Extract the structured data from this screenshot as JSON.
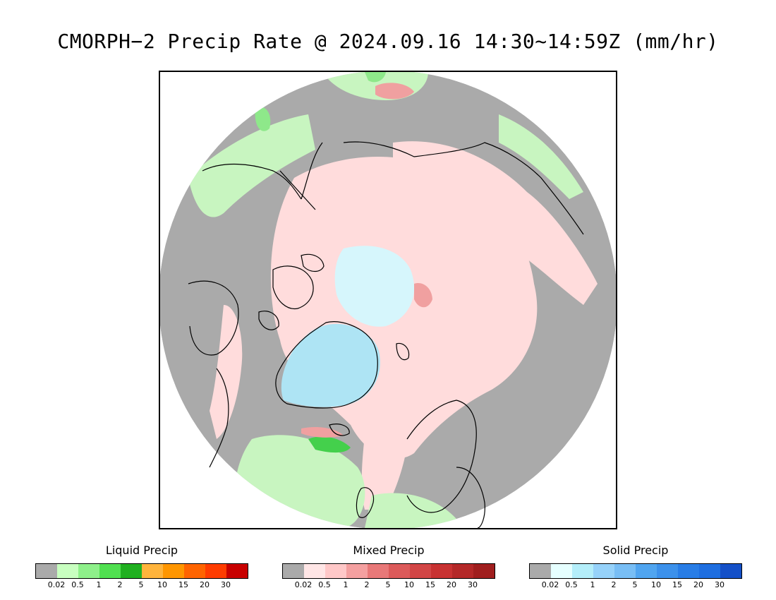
{
  "title": "CMORPH−2 Precip Rate @ 2024.09.16 14:30~14:59Z (mm/hr)",
  "map": {
    "projection": "north-polar-stereographic",
    "colors": {
      "no_precip": "#aaaaaa",
      "liquid_light": "#c8f5c0",
      "liquid_mid": "#8ee88a",
      "liquid_strong": "#44d04c",
      "mixed_light": "#ffdcdc",
      "mixed_mid": "#f0a0a0",
      "mixed_strong": "#dc5a5a",
      "solid_light": "#d6f6fc",
      "solid_mid": "#aee4f4",
      "coastline": "#000000"
    }
  },
  "legends": [
    {
      "title": "Liquid Precip",
      "ticks": [
        "0.02",
        "0.5",
        "1",
        "2",
        "5",
        "10",
        "15",
        "20",
        "30"
      ],
      "colors": [
        "#aaaaaa",
        "#c8ffc0",
        "#8ef08a",
        "#50e050",
        "#20b020",
        "#ffb43c",
        "#ff9600",
        "#ff6400",
        "#ff3c00",
        "#c80000"
      ]
    },
    {
      "title": "Mixed Precip",
      "ticks": [
        "0.02",
        "0.5",
        "1",
        "2",
        "5",
        "10",
        "15",
        "20",
        "30"
      ],
      "colors": [
        "#aaaaaa",
        "#ffe6e6",
        "#ffc8c8",
        "#f4a0a0",
        "#e87878",
        "#dc5a5a",
        "#d24646",
        "#c83232",
        "#b42828",
        "#a01e1e"
      ]
    },
    {
      "title": "Solid Precip",
      "ticks": [
        "0.02",
        "0.5",
        "1",
        "2",
        "5",
        "10",
        "15",
        "20",
        "30"
      ],
      "colors": [
        "#aaaaaa",
        "#e6ffff",
        "#b4eefa",
        "#96d2fa",
        "#78bef5",
        "#50a5f0",
        "#3c91eb",
        "#287de6",
        "#1e6ee0",
        "#1450c8"
      ]
    }
  ]
}
